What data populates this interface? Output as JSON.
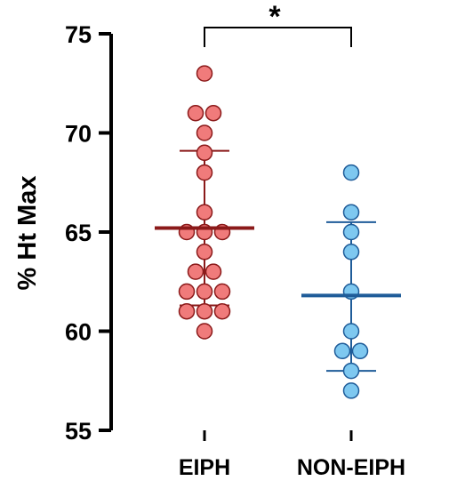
{
  "chart_data": {
    "type": "scatter",
    "title": "",
    "xlabel": "",
    "ylabel": "% Ht Max",
    "ylim": [
      55,
      75
    ],
    "yticks": [
      55,
      60,
      65,
      70,
      75
    ],
    "categories": [
      "EIPH",
      "NON-EIPH"
    ],
    "series": [
      {
        "category": "EIPH",
        "fill": "#f07b7b",
        "stroke": "#8b1a1a",
        "values": [
          73,
          71,
          71,
          70,
          69,
          68,
          66,
          65,
          65,
          65,
          64,
          63,
          63,
          62,
          62,
          62,
          61,
          61,
          61,
          60
        ],
        "mean": 65.2,
        "sd_low": 61.3,
        "sd_high": 69.1
      },
      {
        "category": "NON-EIPH",
        "fill": "#7ec8f0",
        "stroke": "#1f5c99",
        "values": [
          68,
          66,
          65,
          64,
          62,
          60,
          59,
          59,
          58,
          57
        ],
        "mean": 61.8,
        "sd_low": 58.0,
        "sd_high": 65.5
      }
    ],
    "significance": {
      "label": "*",
      "between": [
        "EIPH",
        "NON-EIPH"
      ]
    }
  }
}
